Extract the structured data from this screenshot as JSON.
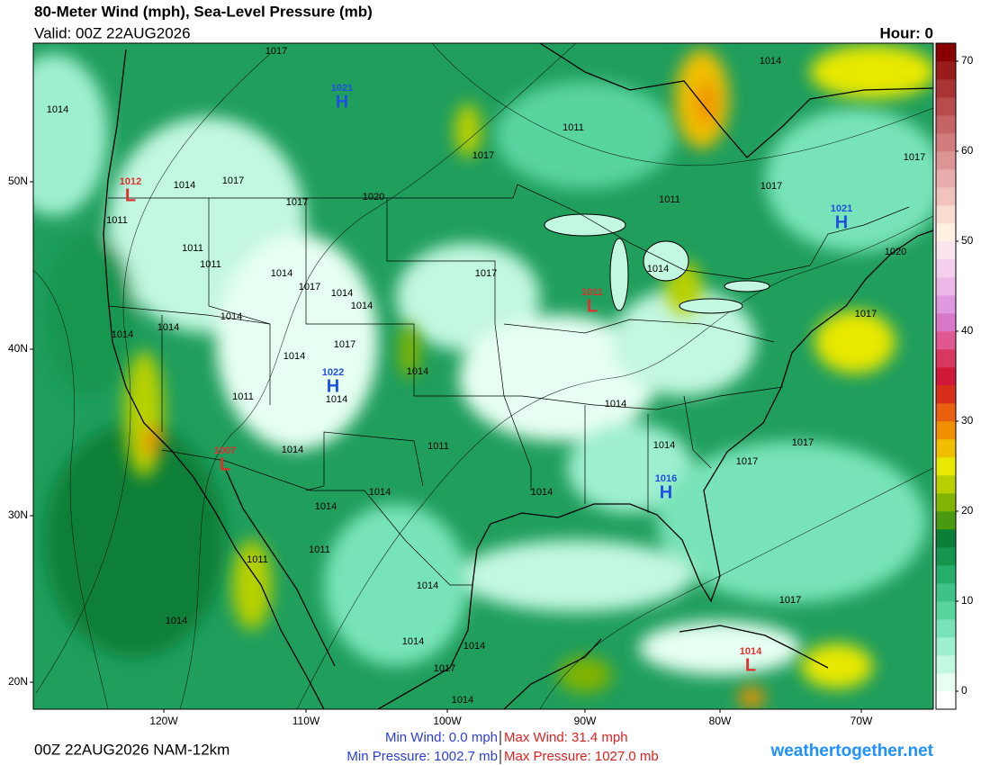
{
  "title": "80-Meter Wind (mph), Sea-Level Pressure (mb)",
  "valid": "Valid: 00Z 22AUG2026",
  "hour": "Hour: 0",
  "footer": {
    "run": "00Z 22AUG2026 NAM-12km",
    "min_wind": "Min Wind:   0.0 mph",
    "max_wind": "Max Wind:  31.4 mph",
    "min_pressure": "Min Pressure: 1002.7 mb",
    "max_pressure": "Max Pressure: 1027.0 mb",
    "site": "weathertogether.net"
  },
  "latitudes": [
    {
      "value": 50,
      "label": "50N"
    },
    {
      "value": 40,
      "label": "40N"
    },
    {
      "value": 30,
      "label": "30N"
    },
    {
      "value": 20,
      "label": "20N"
    }
  ],
  "longitudes": [
    {
      "value": -120,
      "label": "120W"
    },
    {
      "value": -110,
      "label": "110W"
    },
    {
      "value": -100,
      "label": "100W"
    },
    {
      "value": -90,
      "label": "90W"
    },
    {
      "value": -80,
      "label": "80W"
    },
    {
      "value": -70,
      "label": "70W"
    }
  ],
  "colorbar": {
    "clim": [
      -2,
      72
    ],
    "ticks": [
      0,
      10,
      20,
      30,
      40,
      50,
      60,
      70
    ],
    "colors": [
      "#ffffff",
      "#e6fff2",
      "#c2f7e0",
      "#9eefcf",
      "#78e3b8",
      "#58d49f",
      "#3fc287",
      "#27ad6a",
      "#15964f",
      "#0a7f37",
      "#4a9a10",
      "#80b400",
      "#b8d000",
      "#e8e800",
      "#f0c000",
      "#f09000",
      "#e86010",
      "#d83018",
      "#d01838",
      "#d83860",
      "#e05890",
      "#d878c8",
      "#e098e0",
      "#ecb8e8",
      "#f4d0ec",
      "#fae4ee",
      "#fff0e0",
      "#f8dcd0",
      "#f0c4bc",
      "#e8acac",
      "#dc9494",
      "#d07c7c",
      "#c46464",
      "#b84c4c",
      "#a83434",
      "#981c1c",
      "#880000"
    ]
  },
  "pressure_centers": [
    {
      "symbol": "H",
      "value": 1021,
      "color": "#1e50e0"
    },
    {
      "symbol": "L",
      "value": 1012,
      "color": "#e03030"
    },
    {
      "symbol": "H",
      "value": 1021,
      "color": "#1e50e0"
    },
    {
      "symbol": "L",
      "value": 1011,
      "color": "#e03030"
    },
    {
      "symbol": "H",
      "value": 1022,
      "color": "#1e50e0"
    },
    {
      "symbol": "L",
      "value": 1007,
      "color": "#e03030"
    },
    {
      "symbol": "H",
      "value": 1016,
      "color": "#1e50e0"
    },
    {
      "symbol": "L",
      "value": 1014,
      "color": "#e03030"
    }
  ],
  "isobar_labels": [
    1017,
    1014,
    1014,
    1011,
    1017,
    1017,
    1014,
    1017,
    1017,
    1017,
    1020,
    1011,
    1011,
    1011,
    1011,
    1014,
    1017,
    1020,
    1014,
    1017,
    1014,
    1014,
    1014,
    1014,
    1014,
    1017,
    1014,
    1017,
    1014,
    1014,
    1011,
    1014,
    1014,
    1011,
    1014,
    1017,
    1017,
    1014,
    1014,
    1014,
    1011,
    1011,
    1014,
    1017,
    1014,
    1014,
    1014,
    1017,
    1014
  ]
}
